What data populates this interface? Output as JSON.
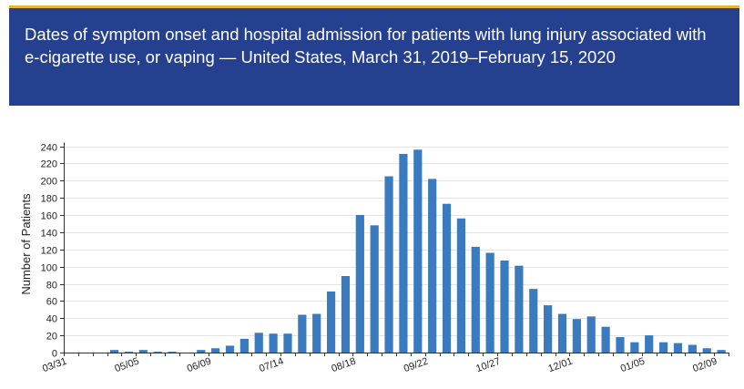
{
  "header": {
    "title": "Dates of symptom onset and hospital admission for patients with lung injury associated with e-cigarette use, or vaping — United States, March 31, 2019–February 15, 2020",
    "background_color": "#25408f",
    "accent_color": "#e9b52f"
  },
  "chart_data": {
    "type": "bar",
    "ylabel": "Number of Patients",
    "xlabel": "",
    "ylim": [
      0,
      240
    ],
    "yticks": [
      0,
      20,
      40,
      60,
      80,
      100,
      120,
      140,
      160,
      180,
      200,
      220,
      240
    ],
    "xtick_labels": [
      "03/31",
      "05/05",
      "06/09",
      "07/14",
      "08/18",
      "09/22",
      "10/27",
      "12/01",
      "01/05",
      "02/09"
    ],
    "grid": true,
    "bar_color": "#3a7bbf",
    "series": [
      {
        "values": [
          0,
          0,
          0,
          3,
          1,
          3,
          1,
          1,
          0,
          3,
          5,
          8,
          16,
          23,
          22,
          22,
          44,
          45,
          71,
          89,
          160,
          148,
          205,
          231,
          236,
          202,
          173,
          156,
          123,
          116,
          107,
          101,
          74,
          55,
          45,
          39,
          42,
          30,
          18,
          12,
          20,
          12,
          11,
          9,
          5,
          3
        ]
      }
    ]
  }
}
